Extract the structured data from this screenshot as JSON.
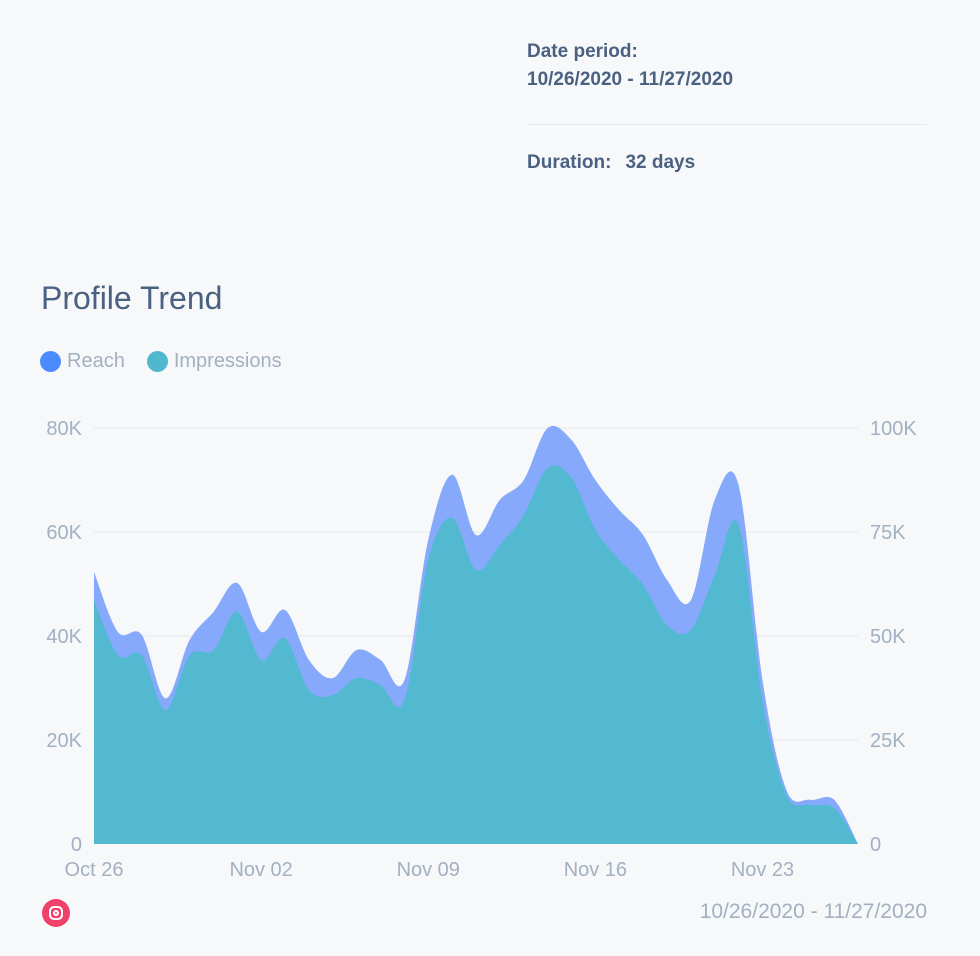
{
  "header": {
    "date_period_label": "Date period:",
    "date_period_value": "10/26/2020 - 11/27/2020",
    "duration_label": "Duration:",
    "duration_value": "32 days"
  },
  "footer": {
    "date_range": "10/26/2020 - 11/27/2020",
    "platform_icon": "instagram-icon"
  },
  "chart_data": {
    "type": "area",
    "title": "Profile Trend",
    "legend_position": "top-left",
    "grid": "horizontal",
    "x_start": "2020-10-26",
    "x_ticks": [
      "Oct 26",
      "Nov 02",
      "Nov 09",
      "Nov 16",
      "Nov 23"
    ],
    "y_left": {
      "ticks": [
        "0",
        "20K",
        "40K",
        "60K",
        "80K"
      ],
      "range": [
        0,
        80000
      ],
      "series": "Reach"
    },
    "y_right": {
      "ticks": [
        "0",
        "25K",
        "50K",
        "75K",
        "100K"
      ],
      "range": [
        0,
        100000
      ],
      "series": "Impressions"
    },
    "series": [
      {
        "name": "Reach",
        "axis": "left",
        "color": "#4a8cff",
        "fill": "#86a9fb",
        "values": [
          52300,
          40800,
          40200,
          28000,
          39200,
          44600,
          50200,
          40800,
          45000,
          35400,
          31900,
          37300,
          35400,
          31500,
          58500,
          71000,
          59400,
          66200,
          70000,
          80000,
          77700,
          70000,
          64200,
          59400,
          50800,
          46900,
          66200,
          69000,
          31500,
          10400,
          8500,
          8500,
          0
        ]
      },
      {
        "name": "Impressions",
        "axis": "right",
        "color": "#4fb8cf",
        "fill": "#52b9d1",
        "values": [
          58700,
          45400,
          45400,
          32200,
          45400,
          46600,
          55800,
          44200,
          49500,
          37000,
          35800,
          39900,
          38200,
          34600,
          68300,
          78400,
          65900,
          71900,
          79100,
          90400,
          88000,
          75500,
          68300,
          62300,
          52600,
          51400,
          64700,
          76700,
          34600,
          11800,
          9400,
          8700,
          0
        ]
      }
    ]
  }
}
